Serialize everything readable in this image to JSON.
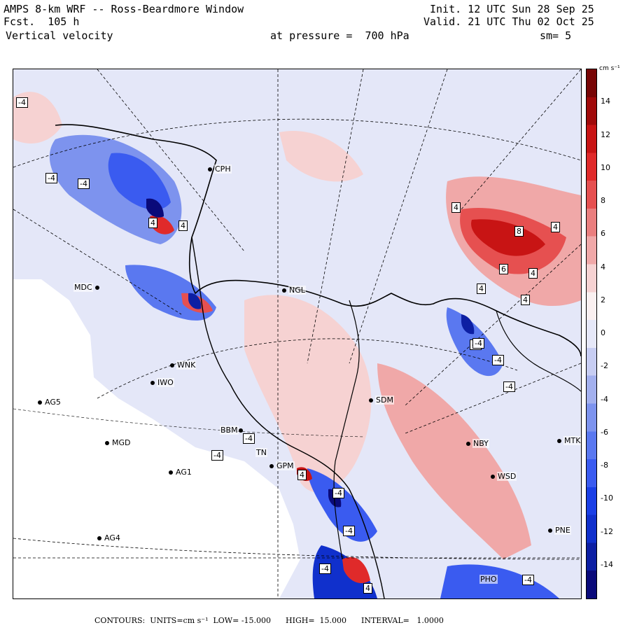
{
  "header": {
    "line1_left": "AMPS 8-km WRF -- Ross-Beardmore Window",
    "line1_right": "Init. 12 UTC Sun 28 Sep 25",
    "line2_left": "Fcst.  105 h",
    "line2_right": "Valid. 21 UTC Thu 02 Oct 25",
    "line3_left": "Vertical velocity",
    "line3_mid": "at pressure =  700 hPa",
    "line3_right": "sm= 5"
  },
  "colorbar": {
    "units": "cm s⁻¹",
    "ticks": [
      "14",
      "12",
      "10",
      "8",
      "6",
      "4",
      "2",
      "0",
      "-2",
      "-4",
      "-6",
      "-8",
      "-10",
      "-12",
      "-14"
    ],
    "colors": [
      "#0a0a7a",
      "#0d1fa3",
      "#1030cc",
      "#1a3fe6",
      "#3a5bf0",
      "#5a78f0",
      "#7d93ee",
      "#a3b0ee",
      "#c7cdf2",
      "#e6e8f8",
      "#faf0f0",
      "#f6d2d2",
      "#f0a8a8",
      "#ea7e7e",
      "#e65050",
      "#e02a2a",
      "#c81414",
      "#a00a0a",
      "#780606"
    ]
  },
  "footer": "CONTOURS:  UNITS=cm s⁻¹  LOW= -15.000      HIGH=  15.000      INTERVAL=   1.0000",
  "stations": [
    {
      "id": "CPH"
    },
    {
      "id": "MDC"
    },
    {
      "id": "NGL"
    },
    {
      "id": "WNK"
    },
    {
      "id": "IWO"
    },
    {
      "id": "AG5"
    },
    {
      "id": "SDM"
    },
    {
      "id": "BBM"
    },
    {
      "id": "MGD"
    },
    {
      "id": "TN"
    },
    {
      "id": "GPM"
    },
    {
      "id": "NBY"
    },
    {
      "id": "MTK"
    },
    {
      "id": "AG1"
    },
    {
      "id": "WSD"
    },
    {
      "id": "AG4"
    },
    {
      "id": "PNE"
    },
    {
      "id": "PHO"
    }
  ],
  "contour_labels": [
    "-4",
    "-4",
    "-4",
    "4",
    "4",
    "4",
    "8",
    "4",
    "6",
    "4",
    "4",
    "4",
    "-4",
    "-4",
    "-4",
    "-4",
    "-4",
    "-4",
    "-4",
    "-4",
    "-4",
    "4",
    "-4",
    "4"
  ]
}
